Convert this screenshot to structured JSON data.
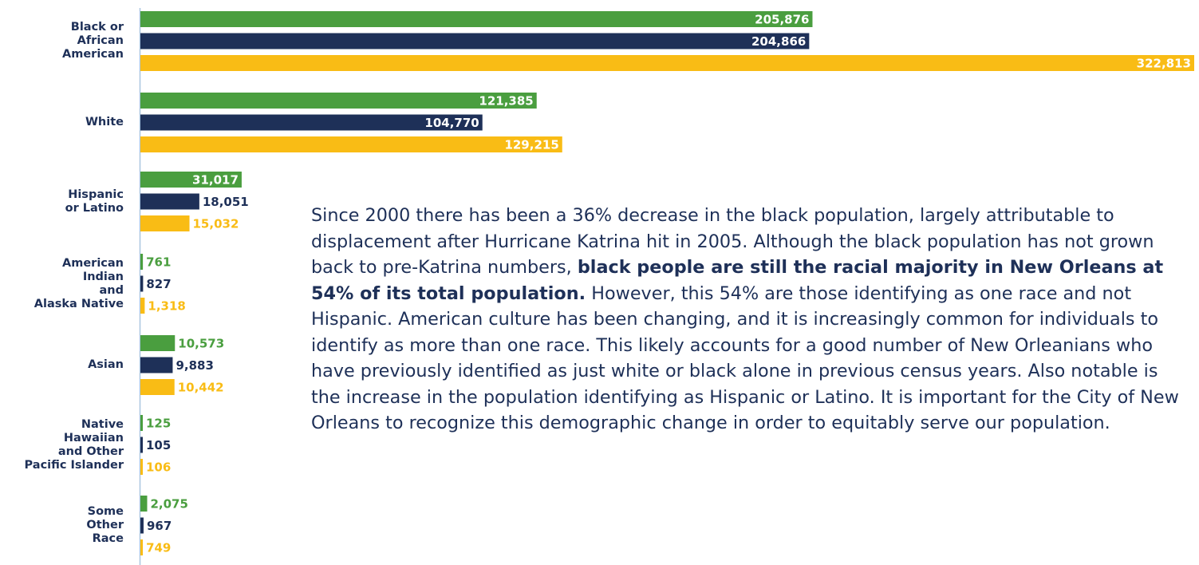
{
  "chart_data": {
    "type": "bar",
    "orientation": "horizontal",
    "categories": [
      "Black or\nAfrican\nAmerican",
      "White",
      "Hispanic\nor Latino",
      "American\nIndian\nand\nAlaska Native",
      "Asian",
      "Native\nHawaiian\nand Other\nPacific Islander",
      "Some\nOther\nRace"
    ],
    "series": [
      {
        "color": "#4a9e3f",
        "values": [
          205876,
          121385,
          31017,
          761,
          10573,
          125,
          2075
        ],
        "value_labels": [
          "205,876",
          "121,385",
          "31,017",
          "761",
          "10,573",
          "125",
          "2,075"
        ]
      },
      {
        "color": "#1e3058",
        "values": [
          204866,
          104770,
          18051,
          827,
          9883,
          105,
          967
        ],
        "value_labels": [
          "204,866",
          "104,770",
          "18,051",
          "827",
          "9,883",
          "105",
          "967"
        ]
      },
      {
        "color": "#f9bc15",
        "values": [
          322813,
          129215,
          15032,
          1318,
          10442,
          106,
          749
        ],
        "value_labels": [
          "322,813",
          "129,215",
          "15,032",
          "1,318",
          "10,442",
          "106",
          "749"
        ]
      }
    ]
  },
  "paragraph": {
    "text_before": "Since 2000 there has been a 36% decrease in the black population, largely attributable to displacement after Hurricane Katrina hit in 2005. Although the black population has not grown back to pre-Katrina numbers, ",
    "bold": "black people are still the racial majority in New Orleans at 54% of its total population.",
    "text_after": " However, this 54% are those identifying as one race and not Hispanic. American culture has been changing, and it is increasingly common for individuals to identify as more than one race. This likely accounts for a good number of New Orleanians who have previously identified as just white or black alone in previous census years. Also notable is the increase in the population identifying as Hispanic or Latino. It is important for the City of New Orleans to recognize this demographic change in order to equitably serve our population."
  }
}
